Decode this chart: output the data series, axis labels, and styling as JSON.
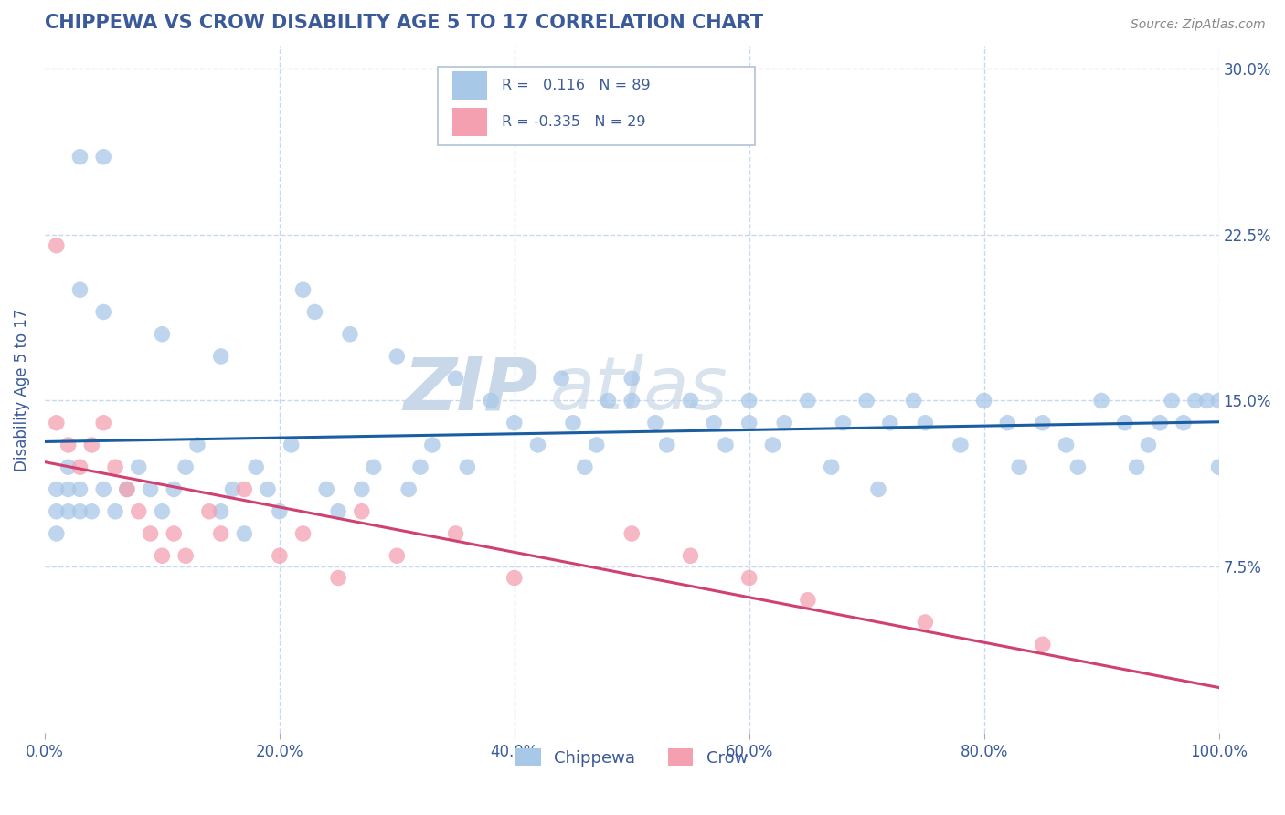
{
  "title": "CHIPPEWA VS CROW DISABILITY AGE 5 TO 17 CORRELATION CHART",
  "source_text": "Source: ZipAtlas.com",
  "ylabel": "Disability Age 5 to 17",
  "xlim": [
    0,
    100
  ],
  "ylim": [
    0,
    31
  ],
  "xtick_labels": [
    "0.0%",
    "20.0%",
    "40.0%",
    "60.0%",
    "80.0%",
    "100.0%"
  ],
  "xtick_vals": [
    0,
    20,
    40,
    60,
    80,
    100
  ],
  "ytick_labels": [
    "7.5%",
    "15.0%",
    "22.5%",
    "30.0%"
  ],
  "ytick_vals": [
    7.5,
    15.0,
    22.5,
    30.0
  ],
  "legend_labels": [
    "Chippewa",
    "Crow"
  ],
  "R_chippewa": 0.116,
  "N_chippewa": 89,
  "R_crow": -0.335,
  "N_crow": 29,
  "chippewa_color": "#a8c8e8",
  "crow_color": "#f4a0b0",
  "chippewa_line_color": "#1a5da0",
  "crow_line_color": "#d04070",
  "title_color": "#3a5a9a",
  "grid_color": "#c8d8ee",
  "background_color": "#ffffff",
  "watermark_color": "#c8d8e8",
  "chippewa_x": [
    3,
    5,
    3,
    5,
    10,
    15,
    22,
    23,
    26,
    30,
    35,
    38,
    40,
    42,
    44,
    45,
    47,
    48,
    50,
    50,
    52,
    53,
    55,
    57,
    58,
    60,
    60,
    62,
    63,
    65,
    67,
    68,
    70,
    71,
    72,
    74,
    75,
    78,
    80,
    82,
    83,
    85,
    87,
    88,
    90,
    92,
    93,
    94,
    95,
    96,
    97,
    98,
    99,
    100,
    100,
    1,
    1,
    1,
    2,
    2,
    2,
    3,
    3,
    4,
    5,
    6,
    7,
    8,
    9,
    10,
    11,
    12,
    13,
    15,
    16,
    17,
    18,
    19,
    20,
    21,
    24,
    25,
    27,
    28,
    31,
    32,
    33,
    36,
    46
  ],
  "chippewa_y": [
    26,
    26,
    20,
    19,
    18,
    17,
    20,
    19,
    18,
    17,
    16,
    15,
    14,
    13,
    16,
    14,
    13,
    15,
    16,
    15,
    14,
    13,
    15,
    14,
    13,
    15,
    14,
    13,
    14,
    15,
    12,
    14,
    15,
    11,
    14,
    15,
    14,
    13,
    15,
    14,
    12,
    14,
    13,
    12,
    15,
    14,
    12,
    13,
    14,
    15,
    14,
    15,
    15,
    12,
    15,
    11,
    10,
    9,
    10,
    11,
    12,
    10,
    11,
    10,
    11,
    10,
    11,
    12,
    11,
    10,
    11,
    12,
    13,
    10,
    11,
    9,
    12,
    11,
    10,
    13,
    11,
    10,
    11,
    12,
    11,
    12,
    13,
    12,
    12
  ],
  "crow_x": [
    1,
    1,
    2,
    3,
    4,
    5,
    6,
    7,
    8,
    9,
    10,
    11,
    12,
    14,
    15,
    17,
    20,
    22,
    25,
    27,
    30,
    35,
    40,
    50,
    55,
    60,
    65,
    75,
    85
  ],
  "crow_y": [
    22,
    14,
    13,
    12,
    13,
    14,
    12,
    11,
    10,
    9,
    8,
    9,
    8,
    10,
    9,
    11,
    8,
    9,
    7,
    10,
    8,
    9,
    7,
    9,
    8,
    7,
    6,
    5,
    4
  ]
}
